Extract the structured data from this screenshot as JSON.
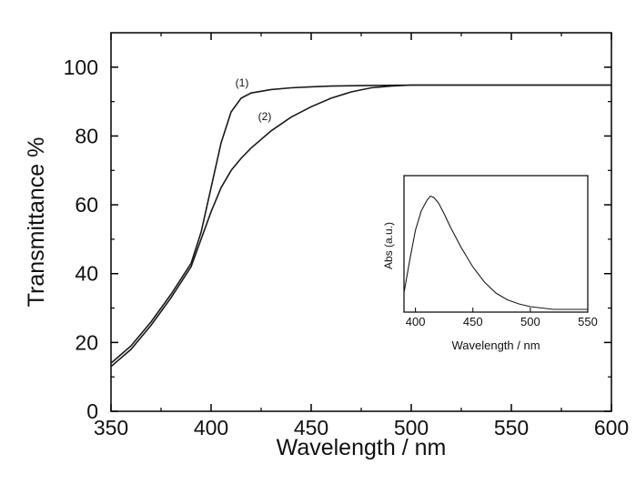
{
  "chart_data": [
    {
      "type": "line",
      "xlabel": "Wavelength / nm",
      "ylabel": "Transmittance %",
      "xlim": [
        350,
        600
      ],
      "ylim": [
        0,
        110
      ],
      "xticks": [
        350,
        400,
        450,
        500,
        550,
        600
      ],
      "yticks": [
        0,
        20,
        40,
        60,
        80,
        100
      ],
      "grid": false,
      "series": [
        {
          "name": "(1)",
          "x": [
            350,
            360,
            370,
            380,
            390,
            395,
            400,
            405,
            410,
            415,
            420,
            430,
            440,
            450,
            460,
            480,
            500,
            520,
            550,
            600
          ],
          "y": [
            14,
            19,
            26,
            34,
            43,
            52,
            65,
            78,
            87,
            91,
            92.5,
            93.5,
            94,
            94.3,
            94.5,
            94.7,
            94.8,
            94.8,
            94.8,
            94.8
          ]
        },
        {
          "name": "(2)",
          "x": [
            350,
            360,
            370,
            380,
            390,
            395,
            400,
            405,
            410,
            415,
            420,
            430,
            440,
            450,
            460,
            470,
            480,
            490,
            500,
            520,
            550,
            600
          ],
          "y": [
            13,
            18,
            25,
            33,
            42,
            50,
            58,
            65,
            70,
            73.5,
            76.5,
            81.5,
            85.5,
            88.5,
            91,
            92.8,
            94,
            94.5,
            94.8,
            94.8,
            94.8,
            94.8
          ]
        }
      ]
    },
    {
      "type": "line",
      "xlabel": "Wavelength / nm",
      "ylabel": "Abs (a.u.)",
      "xlim": [
        390,
        550
      ],
      "ylim": [
        0,
        1
      ],
      "xticks": [
        400,
        450,
        500,
        550
      ],
      "grid": false,
      "series": [
        {
          "x": [
            390,
            395,
            400,
            405,
            410,
            413,
            416,
            420,
            425,
            430,
            440,
            450,
            460,
            470,
            480,
            490,
            500,
            510,
            520,
            530,
            540,
            550
          ],
          "y": [
            0.14,
            0.38,
            0.6,
            0.74,
            0.82,
            0.85,
            0.84,
            0.8,
            0.72,
            0.63,
            0.47,
            0.33,
            0.22,
            0.14,
            0.09,
            0.06,
            0.04,
            0.03,
            0.02,
            0.02,
            0.02,
            0.02
          ]
        }
      ]
    }
  ]
}
